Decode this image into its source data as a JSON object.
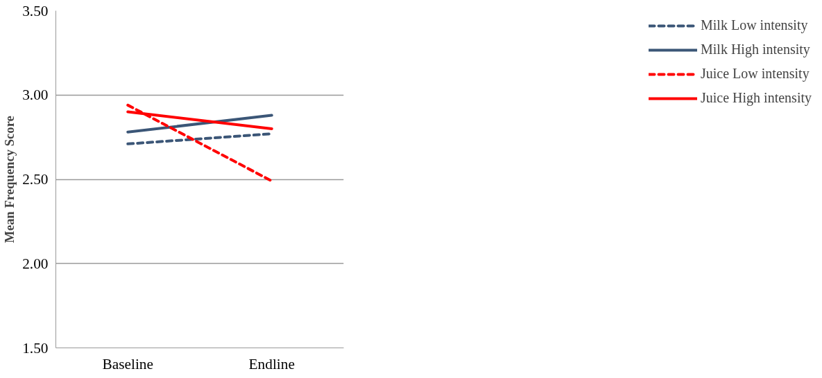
{
  "chart_data": {
    "type": "line",
    "ylabel": "Mean Frequency Score",
    "categories": [
      "Baseline",
      "Endline"
    ],
    "series": [
      {
        "name": "Milk Low intensity",
        "color": "#3b5677",
        "line_style": "dashed",
        "values": [
          2.71,
          2.77
        ]
      },
      {
        "name": "Milk High intensity",
        "color": "#3b5677",
        "line_style": "solid",
        "values": [
          2.78,
          2.88
        ]
      },
      {
        "name": "Juice Low intensity",
        "color": "#ff0000",
        "line_style": "dashed",
        "values": [
          2.94,
          2.49
        ]
      },
      {
        "name": "Juice High intensity",
        "color": "#ff0000",
        "line_style": "solid",
        "values": [
          2.9,
          2.8
        ]
      }
    ],
    "ylim": [
      1.5,
      3.5
    ],
    "yticks": [
      {
        "value": 1.5,
        "label": "1.50"
      },
      {
        "value": 2.0,
        "label": "2.00"
      },
      {
        "value": 2.5,
        "label": "2.50"
      },
      {
        "value": 3.0,
        "label": "3.00"
      },
      {
        "value": 3.5,
        "label": "3.50"
      }
    ],
    "grid": "y",
    "legend": "right"
  }
}
